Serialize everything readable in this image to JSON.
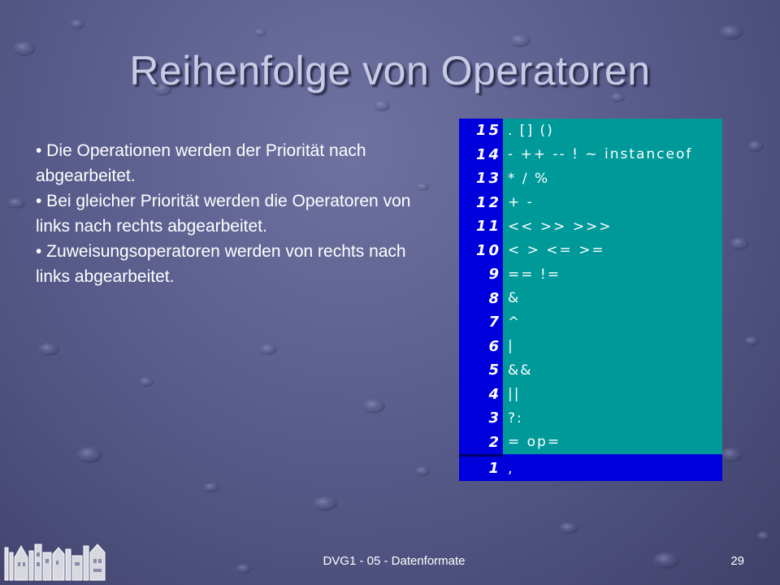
{
  "slide": {
    "title": "Reihenfolge von Operatoren",
    "bullets": [
      "• Die Operationen werden der Priorität nach abgearbeitet.",
      "• Bei gleicher Priorität werden die Operatoren von links nach rechts abgearbeitet.",
      "• Zuweisungsoperatoren werden von rechts nach links abgearbeitet."
    ],
    "table": [
      {
        "prio": "15",
        "ops": ". [] ()"
      },
      {
        "prio": "14",
        "ops": "- ++ -- ! ~ instanceof"
      },
      {
        "prio": "13",
        "ops": "* / %"
      },
      {
        "prio": "12",
        "ops": "+ -"
      },
      {
        "prio": "11",
        "ops": "<< >> >>>"
      },
      {
        "prio": "10",
        "ops": "< > <= >="
      },
      {
        "prio": "9",
        "ops": "== !="
      },
      {
        "prio": "8",
        "ops": "&"
      },
      {
        "prio": "7",
        "ops": "^"
      },
      {
        "prio": "6",
        "ops": "|"
      },
      {
        "prio": "5",
        "ops": "&&"
      },
      {
        "prio": "4",
        "ops": "||"
      },
      {
        "prio": "3",
        "ops": "?:"
      },
      {
        "prio": "2",
        "ops": "= op="
      },
      {
        "prio": "1",
        "ops": ","
      }
    ],
    "footer": "DVG1 - 05 - Datenformate",
    "page_number": "29",
    "colors": {
      "priority_column": "#0000dd",
      "operator_column": "#009999",
      "title": "#c9cbe6"
    },
    "logo_icon": "university-logo-icon"
  }
}
